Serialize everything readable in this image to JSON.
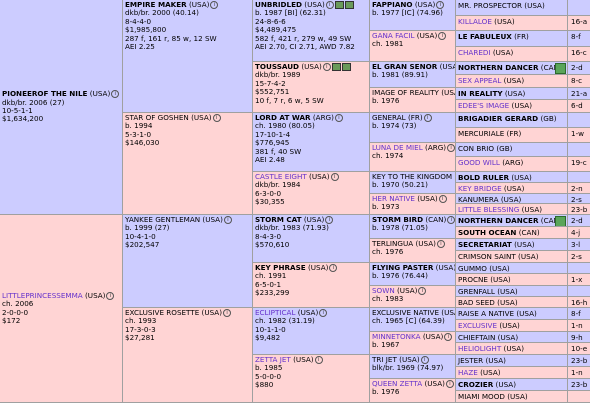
{
  "pedigree": {
    "gen1": [
      {
        "name": "PIONEEROF THE NILE",
        "country": "(USA)",
        "sex": "m",
        "style": "bold",
        "lines": [
          "dkb/br. 2006 (27)",
          "10-5-1-1",
          "$1,634,200"
        ]
      },
      {
        "name": "LITTLEPRINCESSEMMA",
        "country": "(USA)",
        "sex": "f",
        "style": "link",
        "lines": [
          "ch. 2006",
          "2-0-0-0",
          "$172"
        ]
      }
    ],
    "gen2": [
      {
        "name": "EMPIRE MAKER",
        "country": "(USA)",
        "sex": "m",
        "style": "bold",
        "lines": [
          "dkb/br. 2000 (40.14)",
          "8-4-4-0",
          "$1,985,800",
          "287 f, 161 r, 85 w, 12 SW",
          "AEI 2.25"
        ]
      },
      {
        "name": "STAR OF GOSHEN",
        "country": "(USA)",
        "sex": "f",
        "style": "plain",
        "lines": [
          "b. 1994",
          "5-3-1-0",
          "$146,030"
        ]
      },
      {
        "name": "YANKEE GENTLEMAN",
        "country": "(USA)",
        "sex": "m",
        "style": "plain",
        "lines": [
          "b. 1999 (27)",
          "10-4-1-0",
          "$202,547"
        ]
      },
      {
        "name": "EXCLUSIVE ROSETTE",
        "country": "(USA)",
        "sex": "f",
        "style": "plain",
        "lines": [
          "ch. 1993",
          "17-3-0-3",
          "$27,281"
        ]
      }
    ],
    "gen3": [
      {
        "name": "UNBRIDLED",
        "country": "(USA)",
        "sex": "m",
        "style": "bold",
        "icons": true,
        "lines": [
          "b. 1987 [BI] (62.31)",
          "24-8-6-6",
          "$4,489,475",
          "582 f, 421 r, 279 w, 49 SW",
          "AEI 2.70, CI 2.71, AWD 7.82"
        ]
      },
      {
        "name": "TOUSSAUD",
        "country": "(USA)",
        "sex": "f",
        "style": "bold",
        "icons": true,
        "lines": [
          "dkb/br. 1989",
          "15-7-4-2",
          "$552,751",
          "10 f, 7 r, 6 w, 5 SW"
        ]
      },
      {
        "name": "LORD AT WAR",
        "country": "(ARG)",
        "sex": "m",
        "style": "bold",
        "lines": [
          "ch. 1980 (80.05)",
          "17-10-1-4",
          "$776,945",
          "381 f, 40 SW",
          "AEI 2.48"
        ]
      },
      {
        "name": "CASTLE EIGHT",
        "country": "(USA)",
        "sex": "f",
        "style": "link",
        "lines": [
          "dkb/br. 1984",
          "6-3-0-0",
          "$30,355"
        ]
      },
      {
        "name": "STORM CAT",
        "country": "(USA)",
        "sex": "m",
        "style": "bold",
        "lines": [
          "dkb/br. 1983 (71.93)",
          "8-4-3-0",
          "$570,610"
        ]
      },
      {
        "name": "KEY PHRASE",
        "country": "(USA)",
        "sex": "f",
        "style": "bold",
        "lines": [
          "ch. 1991",
          "6-5-0-1",
          "$233,299"
        ]
      },
      {
        "name": "ECLIPTICAL",
        "country": "(USA)",
        "sex": "m",
        "style": "link",
        "lines": [
          "ch. 1982 (31.19)",
          "10-1-1-0",
          "$9,482"
        ]
      },
      {
        "name": "ZETTA JET",
        "country": "(USA)",
        "sex": "f",
        "style": "link",
        "lines": [
          "b. 1985",
          "5-0-0-0",
          "$880"
        ]
      }
    ],
    "gen4": [
      {
        "name": "FAPPIANO",
        "country": "(USA)",
        "sex": "m",
        "style": "bold",
        "lines": [
          "b. 1977 [IC] (74.96)"
        ]
      },
      {
        "name": "GANA FACIL",
        "country": "(USA)",
        "sex": "f",
        "style": "link",
        "lines": [
          "ch. 1981"
        ]
      },
      {
        "name": "EL GRAN SENOR",
        "country": "(USA)",
        "sex": "m",
        "style": "bold",
        "lines": [
          "b. 1981 (89.91)"
        ]
      },
      {
        "name": "IMAGE OF REALITY",
        "country": "(USA)",
        "sex": "f",
        "style": "plain",
        "lines": [
          "b. 1976"
        ]
      },
      {
        "name": "GENERAL",
        "country": "(FR)",
        "sex": "m",
        "style": "plain",
        "lines": [
          "b. 1974 (73)"
        ]
      },
      {
        "name": "LUNA DE MIEL",
        "country": "(ARG)",
        "sex": "f",
        "style": "link",
        "lines": [
          "ch. 1974"
        ]
      },
      {
        "name": "KEY TO THE KINGDOM",
        "country": "(USA)",
        "sex": "m",
        "style": "plain",
        "lines": [
          "b. 1970 (50.21)"
        ]
      },
      {
        "name": "HER NATIVE",
        "country": "(USA)",
        "sex": "f",
        "style": "link",
        "lines": [
          "b. 1973"
        ]
      },
      {
        "name": "STORM BIRD",
        "country": "(CAN)",
        "sex": "m",
        "style": "bold",
        "lines": [
          "b. 1978 (71.05)"
        ]
      },
      {
        "name": "TERLINGUA",
        "country": "(USA)",
        "sex": "f",
        "style": "plain",
        "lines": [
          "ch. 1976"
        ]
      },
      {
        "name": "FLYING PASTER",
        "country": "(USA)",
        "sex": "m",
        "style": "bold",
        "lines": [
          "b. 1976 (76.44)"
        ]
      },
      {
        "name": "SOWN",
        "country": "(USA)",
        "sex": "f",
        "style": "link",
        "lines": [
          "ch. 1983"
        ]
      },
      {
        "name": "EXCLUSIVE NATIVE",
        "country": "(USA)",
        "sex": "m",
        "style": "plain",
        "lines": [
          "ch. 1965 [C] (64.39)"
        ]
      },
      {
        "name": "MINNETONKA",
        "country": "(USA)",
        "sex": "f",
        "style": "link",
        "lines": [
          "b. 1967"
        ]
      },
      {
        "name": "TRI JET",
        "country": "(USA)",
        "sex": "m",
        "style": "plain",
        "lines": [
          "blk/br. 1969 (74.97)"
        ]
      },
      {
        "name": "QUEEN ZETTA",
        "country": "(USA)",
        "sex": "f",
        "style": "link",
        "lines": [
          "b. 1976"
        ]
      }
    ],
    "gen5": [
      {
        "name": "MR. PROSPECTOR",
        "country": "(USA)",
        "sex": "m",
        "style": "plain"
      },
      {
        "name": "KILLALOE",
        "country": "(USA)",
        "sex": "f",
        "style": "link",
        "family": "16-a"
      },
      {
        "name": "LE FABULEUX",
        "country": "(FR)",
        "sex": "m",
        "style": "bold",
        "family": "8-f"
      },
      {
        "name": "CHAREDI",
        "country": "(USA)",
        "sex": "f",
        "style": "link",
        "family": "16-c"
      },
      {
        "name": "NORTHERN DANCER",
        "country": "(CAN)",
        "sex": "m",
        "style": "bold",
        "icon": true,
        "family": "2-d"
      },
      {
        "name": "SEX APPEAL",
        "country": "(USA)",
        "sex": "f",
        "style": "link",
        "family": "8-c"
      },
      {
        "name": "IN REALITY",
        "country": "(USA)",
        "sex": "m",
        "style": "bold",
        "family": "21-a"
      },
      {
        "name": "EDEE'S IMAGE",
        "country": "(USA)",
        "sex": "f",
        "style": "link",
        "family": "6-d"
      },
      {
        "name": "BRIGADIER GERARD",
        "country": "(GB)",
        "sex": "m",
        "style": "bold"
      },
      {
        "name": "MERCURIALE",
        "country": "(FR)",
        "sex": "f",
        "style": "plain",
        "family": "1-w"
      },
      {
        "name": "CON BRIO",
        "country": "(GB)",
        "sex": "m",
        "style": "plain"
      },
      {
        "name": "GOOD WILL",
        "country": "(ARG)",
        "sex": "f",
        "style": "link",
        "family": "19-c"
      },
      {
        "name": "BOLD RULER",
        "country": "(USA)",
        "sex": "m",
        "style": "bold"
      },
      {
        "name": "KEY BRIDGE",
        "country": "(USA)",
        "sex": "f",
        "style": "link",
        "family": "2-n"
      },
      {
        "name": "KANUMERA",
        "country": "(USA)",
        "sex": "m",
        "style": "plain",
        "family": "2-s"
      },
      {
        "name": "LITTLE BLESSING",
        "country": "(USA)",
        "sex": "f",
        "style": "link",
        "family": "23-b"
      },
      {
        "name": "NORTHERN DANCER",
        "country": "(CAN)",
        "sex": "m",
        "style": "bold",
        "icon": true,
        "family": "2-d"
      },
      {
        "name": "SOUTH OCEAN",
        "country": "(CAN)",
        "sex": "f",
        "style": "bold",
        "family": "4-j"
      },
      {
        "name": "SECRETARIAT",
        "country": "(USA)",
        "sex": "m",
        "style": "bold",
        "family": "3-l"
      },
      {
        "name": "CRIMSON SAINT",
        "country": "(USA)",
        "sex": "f",
        "style": "plain",
        "family": "2-s"
      },
      {
        "name": "GUMMO",
        "country": "(USA)",
        "sex": "m",
        "style": "plain"
      },
      {
        "name": "PROCNE",
        "country": "(USA)",
        "sex": "f",
        "style": "plain",
        "family": "1-x"
      },
      {
        "name": "GRENFALL",
        "country": "(USA)",
        "sex": "m",
        "style": "plain"
      },
      {
        "name": "BAD SEED",
        "country": "(USA)",
        "sex": "f",
        "style": "plain",
        "family": "16-h"
      },
      {
        "name": "RAISE A NATIVE",
        "country": "(USA)",
        "sex": "m",
        "style": "plain",
        "family": "8-f"
      },
      {
        "name": "EXCLUSIVE",
        "country": "(USA)",
        "sex": "f",
        "style": "link",
        "family": "1-n"
      },
      {
        "name": "CHIEFTAIN",
        "country": "(USA)",
        "sex": "m",
        "style": "plain",
        "family": "9-h"
      },
      {
        "name": "HELIOLIGHT",
        "country": "(USA)",
        "sex": "f",
        "style": "link",
        "family": "10-e"
      },
      {
        "name": "JESTER",
        "country": "(USA)",
        "sex": "m",
        "style": "plain",
        "family": "23-b"
      },
      {
        "name": "HAZE",
        "country": "(USA)",
        "sex": "f",
        "style": "link",
        "family": "1-n"
      },
      {
        "name": "CROZIER",
        "country": "(USA)",
        "sex": "m",
        "style": "bold",
        "family": "23-b"
      },
      {
        "name": "MIAMI MOOD",
        "country": "(USA)",
        "sex": "f",
        "style": "plain"
      }
    ]
  }
}
